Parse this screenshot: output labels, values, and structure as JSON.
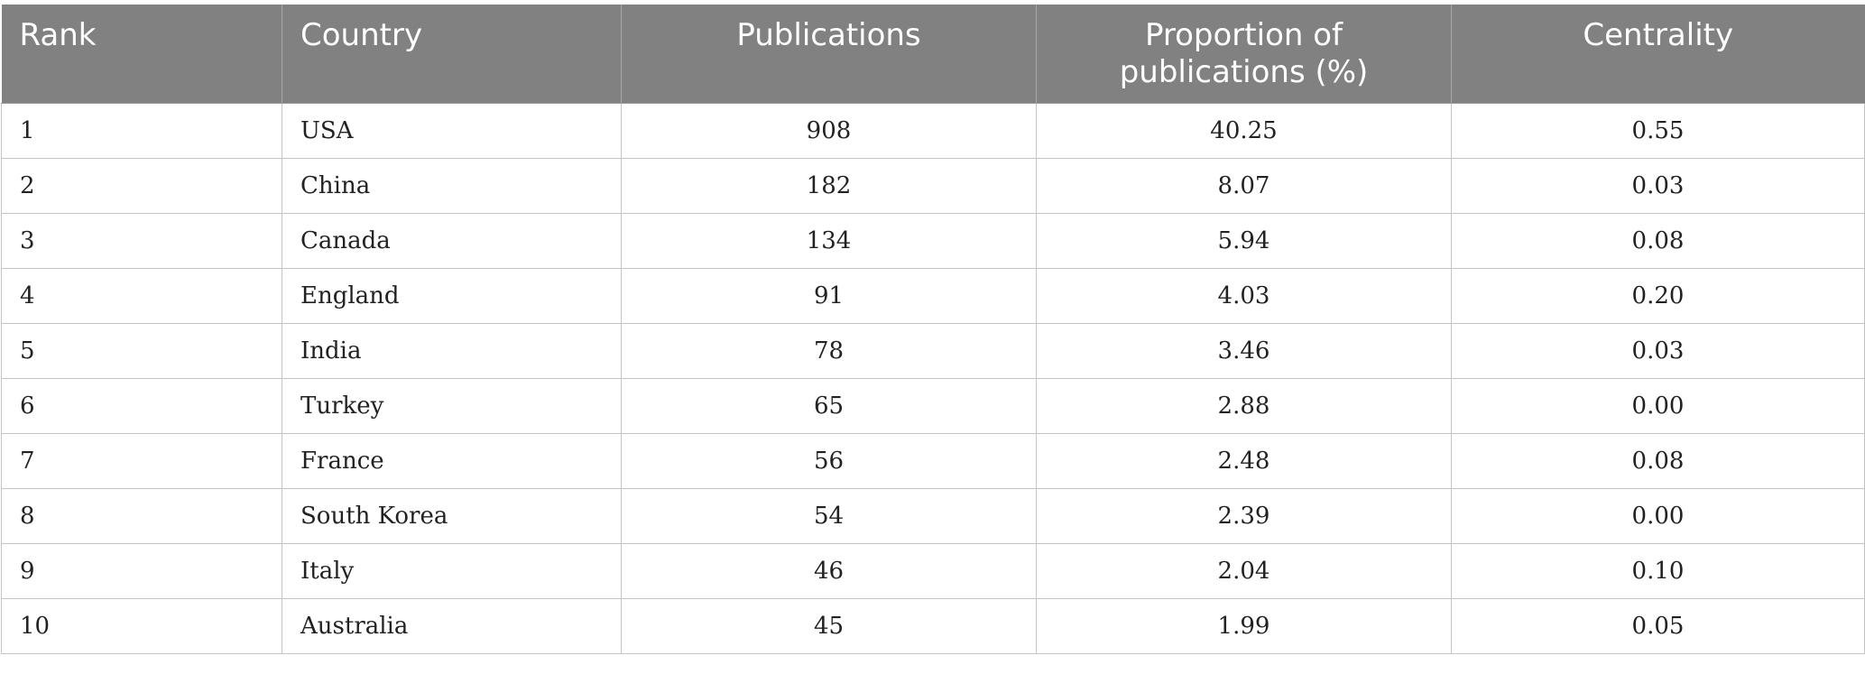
{
  "table": {
    "headers": {
      "rank": "Rank",
      "country": "Country",
      "publications": "Publications",
      "proportion_line1": "Proportion of",
      "proportion_line2": "publications (%)",
      "centrality": "Centrality"
    },
    "rows": [
      {
        "rank": "1",
        "country": "USA",
        "publications": "908",
        "proportion": "40.25",
        "centrality": "0.55"
      },
      {
        "rank": "2",
        "country": "China",
        "publications": "182",
        "proportion": "8.07",
        "centrality": "0.03"
      },
      {
        "rank": "3",
        "country": "Canada",
        "publications": "134",
        "proportion": "5.94",
        "centrality": "0.08"
      },
      {
        "rank": "4",
        "country": "England",
        "publications": "91",
        "proportion": "4.03",
        "centrality": "0.20"
      },
      {
        "rank": "5",
        "country": "India",
        "publications": "78",
        "proportion": "3.46",
        "centrality": "0.03"
      },
      {
        "rank": "6",
        "country": "Turkey",
        "publications": "65",
        "proportion": "2.88",
        "centrality": "0.00"
      },
      {
        "rank": "7",
        "country": "France",
        "publications": "56",
        "proportion": "2.48",
        "centrality": "0.08"
      },
      {
        "rank": "8",
        "country": "South Korea",
        "publications": "54",
        "proportion": "2.39",
        "centrality": "0.00"
      },
      {
        "rank": "9",
        "country": "Italy",
        "publications": "46",
        "proportion": "2.04",
        "centrality": "0.10"
      },
      {
        "rank": "10",
        "country": "Australia",
        "publications": "45",
        "proportion": "1.99",
        "centrality": "0.05"
      }
    ]
  },
  "colors": {
    "header_background": "#808180",
    "header_text": "#ffffff",
    "grid_line": "#c4c4c4",
    "body_text": "#222222"
  }
}
